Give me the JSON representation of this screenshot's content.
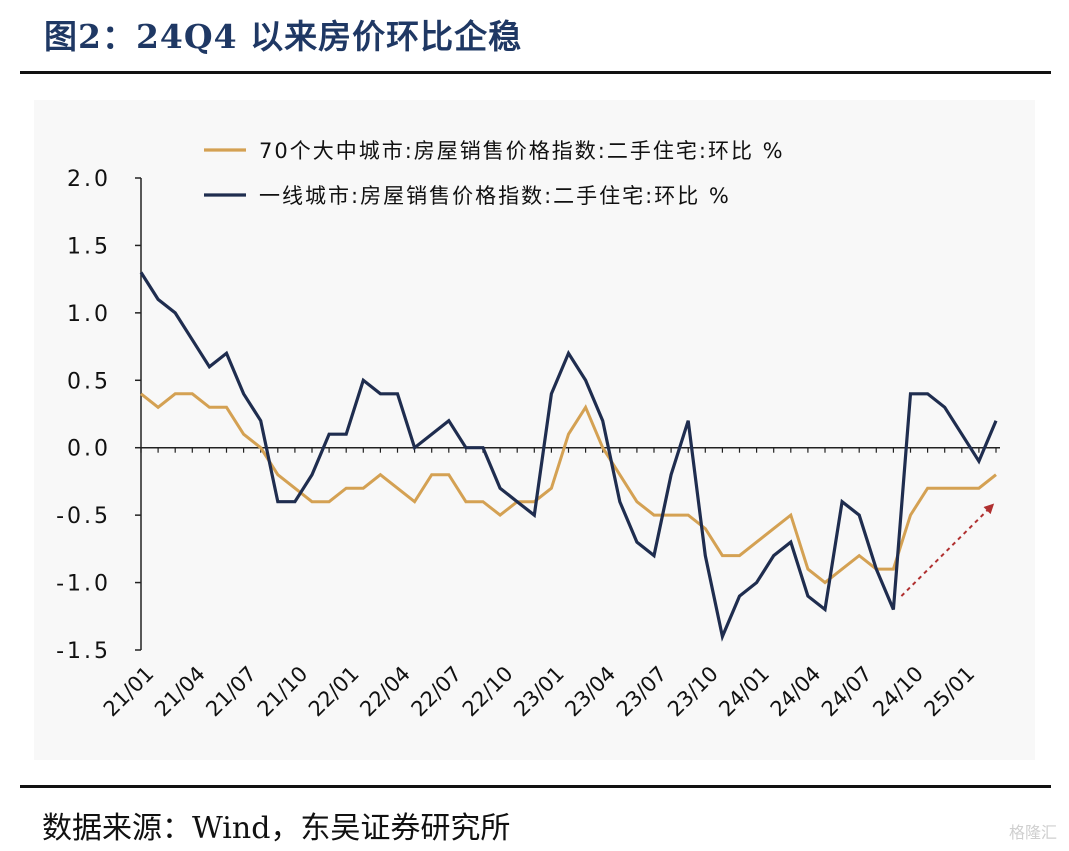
{
  "title": "图2：24Q4 以来房价环比企稳",
  "source": "数据来源：Wind，东吴证券研究所",
  "watermark": "格隆汇",
  "colors": {
    "series1": "#d4a153",
    "series2": "#1f2d4f",
    "arrow": "#b03030",
    "title": "#1f3864"
  },
  "chart_data": {
    "type": "line",
    "x": [
      "21/01",
      "21/02",
      "21/03",
      "21/04",
      "21/05",
      "21/06",
      "21/07",
      "21/08",
      "21/09",
      "21/10",
      "21/11",
      "21/12",
      "22/01",
      "22/02",
      "22/03",
      "22/04",
      "22/05",
      "22/06",
      "22/07",
      "22/08",
      "22/09",
      "22/10",
      "22/11",
      "22/12",
      "23/01",
      "23/02",
      "23/03",
      "23/04",
      "23/05",
      "23/06",
      "23/07",
      "23/08",
      "23/09",
      "23/10",
      "23/11",
      "23/12",
      "24/01",
      "24/02",
      "24/03",
      "24/04",
      "24/05",
      "24/06",
      "24/07",
      "24/08",
      "24/09",
      "24/10",
      "24/11",
      "24/12",
      "25/01",
      "25/02",
      "25/03"
    ],
    "x_tick_labels": [
      "21/01",
      "21/04",
      "21/07",
      "21/10",
      "22/01",
      "22/04",
      "22/07",
      "22/10",
      "23/01",
      "23/04",
      "23/07",
      "23/10",
      "24/01",
      "24/04",
      "24/07",
      "24/10",
      "25/01"
    ],
    "series": [
      {
        "name": "70个大中城市:房屋销售价格指数:二手住宅:环比 %",
        "values": [
          0.4,
          0.3,
          0.4,
          0.4,
          0.3,
          0.3,
          0.1,
          0.0,
          -0.2,
          -0.3,
          -0.4,
          -0.4,
          -0.3,
          -0.3,
          -0.2,
          -0.3,
          -0.4,
          -0.2,
          -0.2,
          -0.4,
          -0.4,
          -0.5,
          -0.4,
          -0.4,
          -0.3,
          0.1,
          0.3,
          0.0,
          -0.2,
          -0.4,
          -0.5,
          -0.5,
          -0.5,
          -0.6,
          -0.8,
          -0.8,
          -0.7,
          -0.6,
          -0.5,
          -0.9,
          -1.0,
          -0.9,
          -0.8,
          -0.9,
          -0.9,
          -0.5,
          -0.3,
          -0.3,
          -0.3,
          -0.3,
          -0.2
        ]
      },
      {
        "name": "一线城市:房屋销售价格指数:二手住宅:环比 %",
        "values": [
          1.3,
          1.1,
          1.0,
          0.8,
          0.6,
          0.7,
          0.4,
          0.2,
          -0.4,
          -0.4,
          -0.2,
          0.1,
          0.1,
          0.5,
          0.4,
          0.4,
          0.0,
          0.1,
          0.2,
          0.0,
          0.0,
          -0.3,
          -0.4,
          -0.5,
          0.4,
          0.7,
          0.5,
          0.2,
          -0.4,
          -0.7,
          -0.8,
          -0.2,
          0.2,
          -0.8,
          -1.4,
          -1.1,
          -1.0,
          -0.8,
          -0.7,
          -1.1,
          -1.2,
          -0.4,
          -0.5,
          -0.9,
          -1.2,
          0.4,
          0.4,
          0.3,
          0.1,
          -0.1,
          0.2
        ]
      }
    ],
    "y_ticks": [
      "2.0",
      "1.5",
      "1.0",
      "0.5",
      "0.0",
      "-0.5",
      "-1.0",
      "-1.5"
    ],
    "ylim": [
      -1.5,
      2.0
    ],
    "legend": "top-center",
    "grid": false,
    "annotation": {
      "type": "arrow",
      "from": {
        "x": "24/09",
        "y": -1.1
      },
      "to": {
        "x": "25/03",
        "y": -0.4
      }
    }
  }
}
